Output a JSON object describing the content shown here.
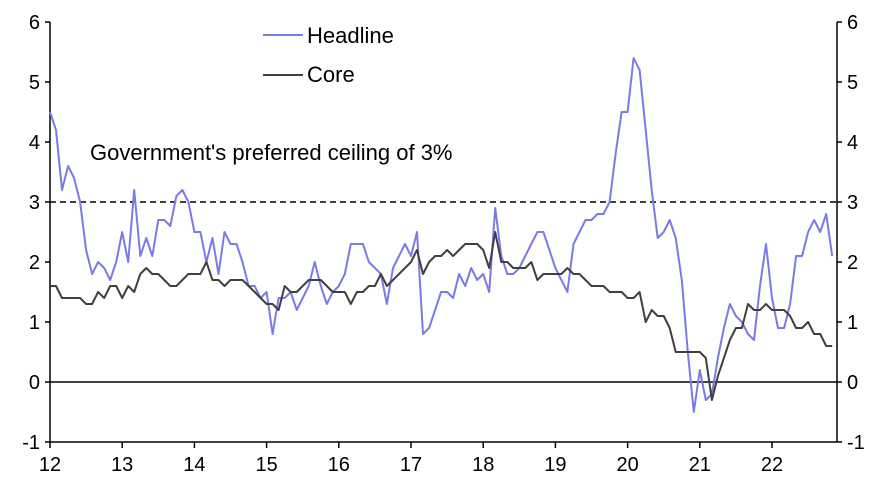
{
  "chart_data": {
    "type": "line",
    "title": "",
    "xlabel": "",
    "ylabel": "",
    "x_start": "2012-01",
    "x_ticks": [
      "12",
      "13",
      "14",
      "15",
      "16",
      "17",
      "18",
      "19",
      "20",
      "21",
      "22"
    ],
    "xlim": [
      2012.0,
      2022.9
    ],
    "ylim": [
      -1,
      6
    ],
    "y_ticks_left": [
      "-1",
      "0",
      "1",
      "2",
      "3",
      "4",
      "5",
      "6"
    ],
    "y_ticks_right": [
      "-1",
      "0",
      "1",
      "2",
      "3",
      "4",
      "5",
      "6"
    ],
    "grid": false,
    "legend": {
      "position": "top-center",
      "entries": [
        "Headline",
        "Core"
      ]
    },
    "reference_lines": [
      {
        "y": 3,
        "style": "dashed",
        "label": "Government's preferred ceiling of 3%"
      },
      {
        "y": 0,
        "style": "solid"
      }
    ],
    "series": [
      {
        "name": "Headline",
        "color": "#7b7be8",
        "values": [
          4.5,
          4.2,
          3.2,
          3.6,
          3.4,
          3.0,
          2.2,
          1.8,
          2.0,
          1.9,
          1.7,
          2.0,
          2.5,
          2.0,
          3.2,
          2.1,
          2.4,
          2.1,
          2.7,
          2.7,
          2.6,
          3.1,
          3.2,
          3.0,
          2.5,
          2.5,
          2.0,
          2.4,
          1.8,
          2.5,
          2.3,
          2.3,
          2.0,
          1.6,
          1.6,
          1.4,
          1.5,
          0.8,
          1.4,
          1.4,
          1.5,
          1.2,
          1.4,
          1.6,
          2.0,
          1.6,
          1.3,
          1.5,
          1.6,
          1.8,
          2.3,
          2.3,
          2.3,
          2.0,
          1.9,
          1.8,
          1.3,
          1.9,
          2.1,
          2.3,
          2.1,
          2.5,
          0.8,
          0.9,
          1.2,
          1.5,
          1.5,
          1.4,
          1.8,
          1.6,
          1.9,
          1.7,
          1.8,
          1.5,
          2.9,
          2.1,
          1.8,
          1.8,
          1.9,
          2.1,
          2.3,
          2.5,
          2.5,
          2.2,
          1.9,
          1.7,
          1.5,
          2.3,
          2.5,
          2.7,
          2.7,
          2.8,
          2.8,
          3.0,
          3.8,
          4.5,
          4.5,
          5.4,
          5.2,
          4.2,
          3.2,
          2.4,
          2.5,
          2.7,
          2.4,
          1.7,
          0.5,
          -0.5,
          0.2,
          -0.3,
          -0.2,
          0.4,
          0.9,
          1.3,
          1.1,
          1.0,
          0.8,
          0.7,
          1.6,
          2.3,
          1.4,
          0.9,
          0.9,
          1.3,
          2.1,
          2.1,
          2.5,
          2.7,
          2.5,
          2.8,
          2.1
        ]
      },
      {
        "name": "Core",
        "color": "#404040",
        "values": [
          1.6,
          1.6,
          1.4,
          1.4,
          1.4,
          1.4,
          1.3,
          1.3,
          1.5,
          1.4,
          1.6,
          1.6,
          1.4,
          1.6,
          1.5,
          1.8,
          1.9,
          1.8,
          1.8,
          1.7,
          1.6,
          1.6,
          1.7,
          1.8,
          1.8,
          1.8,
          2.0,
          1.7,
          1.7,
          1.6,
          1.7,
          1.7,
          1.7,
          1.6,
          1.5,
          1.4,
          1.3,
          1.3,
          1.2,
          1.6,
          1.5,
          1.5,
          1.6,
          1.7,
          1.7,
          1.7,
          1.6,
          1.5,
          1.5,
          1.5,
          1.3,
          1.5,
          1.5,
          1.6,
          1.6,
          1.8,
          1.6,
          1.7,
          1.8,
          1.9,
          2.0,
          2.2,
          1.8,
          2.0,
          2.1,
          2.1,
          2.2,
          2.1,
          2.2,
          2.3,
          2.3,
          2.3,
          2.2,
          1.9,
          2.5,
          2.0,
          2.0,
          1.9,
          1.9,
          1.9,
          2.0,
          1.7,
          1.8,
          1.8,
          1.8,
          1.8,
          1.9,
          1.8,
          1.8,
          1.7,
          1.6,
          1.6,
          1.6,
          1.5,
          1.5,
          1.5,
          1.4,
          1.4,
          1.5,
          1.0,
          1.2,
          1.1,
          1.1,
          0.9,
          0.5,
          0.5,
          0.5,
          0.5,
          0.5,
          0.4,
          -0.3,
          0.1,
          0.4,
          0.7,
          0.9,
          0.9,
          1.3,
          1.2,
          1.2,
          1.3,
          1.2,
          1.2,
          1.2,
          1.1,
          0.9,
          0.9,
          1.0,
          0.8,
          0.8,
          0.6,
          0.6
        ]
      }
    ]
  }
}
